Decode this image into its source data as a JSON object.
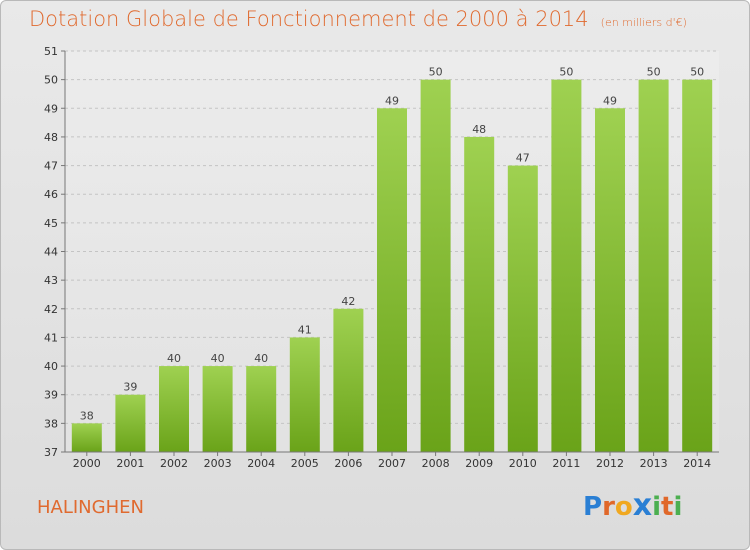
{
  "header": {
    "title": "Dotation Globale de Fonctionnement de 2000 à 2014",
    "subtitle": "(en milliers d'€)"
  },
  "footer": {
    "commune": "HALINGHEN",
    "logo_letters": [
      "P",
      "r",
      "o",
      "x",
      "i",
      "t",
      "i"
    ]
  },
  "colors": {
    "accent": "#e06a2f",
    "bar_top": "#9fd151",
    "bar_bottom": "#6aa319",
    "logo": [
      "#2a7fd4",
      "#e0682a",
      "#f0a820",
      "#2a7fd4",
      "#4caf50",
      "#e0682a",
      "#4caf50"
    ]
  },
  "chart_data": {
    "type": "bar",
    "title": "Dotation Globale de Fonctionnement de 2000 à 2014",
    "subtitle": "(en milliers d'€)",
    "xlabel": "",
    "ylabel": "",
    "categories": [
      "2000",
      "2001",
      "2002",
      "2003",
      "2004",
      "2005",
      "2006",
      "2007",
      "2008",
      "2009",
      "2010",
      "2011",
      "2012",
      "2013",
      "2014"
    ],
    "values": [
      38,
      39,
      40,
      40,
      40,
      41,
      42,
      49,
      50,
      48,
      47,
      50,
      49,
      50,
      50
    ],
    "ylim": [
      37,
      51
    ],
    "yticks": [
      37,
      38,
      39,
      40,
      41,
      42,
      43,
      44,
      45,
      46,
      47,
      48,
      49,
      50,
      51
    ],
    "grid": true,
    "legend": "none"
  }
}
